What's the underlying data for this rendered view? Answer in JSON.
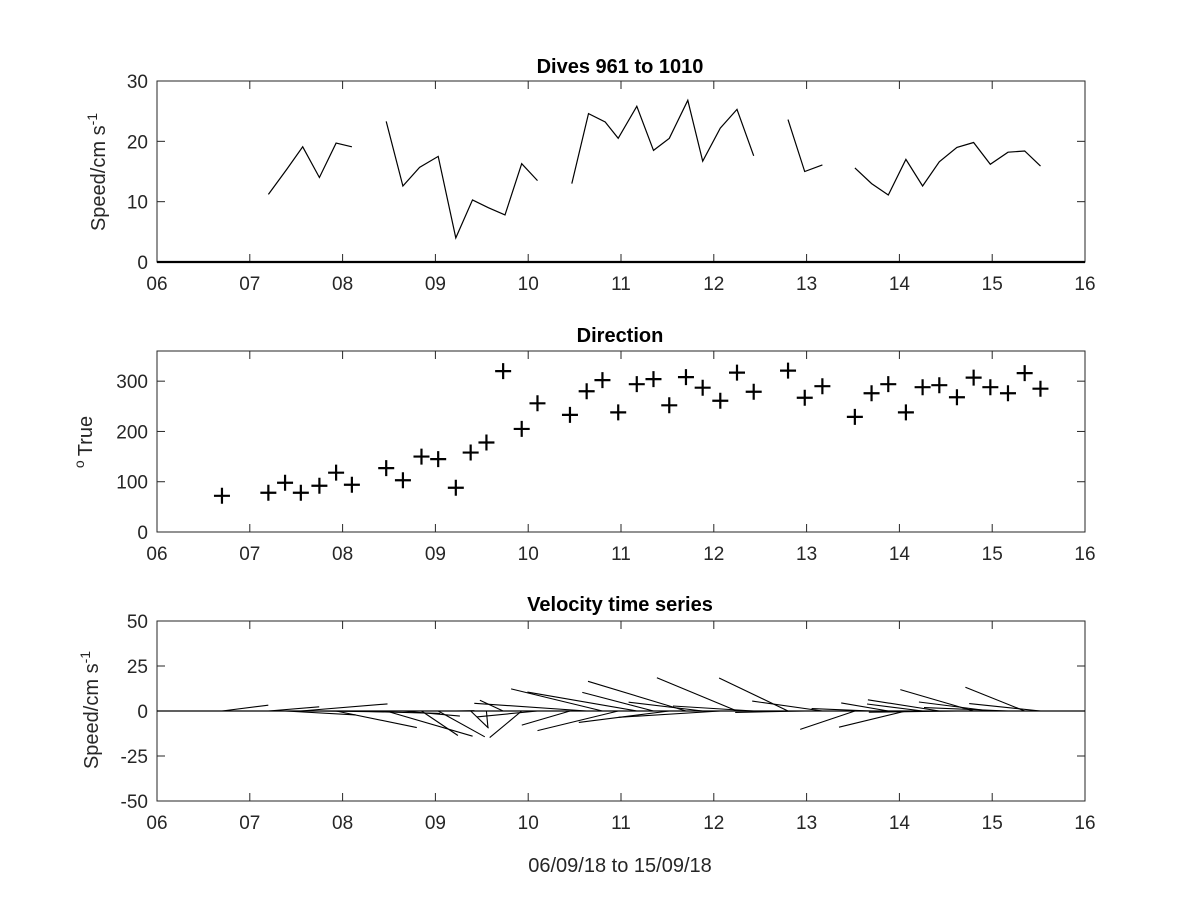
{
  "chart_data": [
    {
      "type": "line",
      "title": "Dives 961 to 1010",
      "ylabel_main": "Speed/cm s",
      "ylabel_sup": "-1",
      "xlabel": "",
      "xlim": [
        6,
        16
      ],
      "ylim": [
        0,
        30
      ],
      "xticks": [
        6,
        7,
        8,
        9,
        10,
        11,
        12,
        13,
        14,
        15,
        16
      ],
      "xtick_labels": [
        "06",
        "07",
        "08",
        "09",
        "10",
        "11",
        "12",
        "13",
        "14",
        "15",
        "16"
      ],
      "yticks": [
        0,
        10,
        20,
        30
      ],
      "ytick_labels": [
        "0",
        "10",
        "20",
        "30"
      ],
      "grid": false,
      "baseline": 0,
      "series": [
        {
          "segments": [
            [
              [
                7.2,
                11.2
              ],
              [
                7.4,
                15.4
              ],
              [
                7.57,
                19.1
              ],
              [
                7.75,
                14.0
              ],
              [
                7.93,
                19.7
              ],
              [
                8.1,
                19.1
              ]
            ],
            [
              [
                8.47,
                23.3
              ],
              [
                8.65,
                12.6
              ],
              [
                8.83,
                15.7
              ],
              [
                9.03,
                17.5
              ],
              [
                9.22,
                4.0
              ],
              [
                9.4,
                10.3
              ],
              [
                9.57,
                9.0
              ],
              [
                9.75,
                7.8
              ],
              [
                9.93,
                16.3
              ],
              [
                10.1,
                13.5
              ]
            ],
            [
              [
                10.47,
                13.0
              ],
              [
                10.65,
                24.6
              ],
              [
                10.83,
                23.2
              ],
              [
                10.97,
                20.5
              ],
              [
                11.17,
                25.8
              ],
              [
                11.35,
                18.5
              ],
              [
                11.52,
                20.5
              ],
              [
                11.72,
                26.8
              ],
              [
                11.88,
                16.7
              ],
              [
                12.07,
                22.2
              ],
              [
                12.25,
                25.3
              ],
              [
                12.43,
                17.6
              ]
            ],
            [
              [
                12.8,
                23.6
              ],
              [
                12.98,
                15.0
              ],
              [
                13.17,
                16.1
              ]
            ],
            [
              [
                13.52,
                15.6
              ],
              [
                13.7,
                13.0
              ],
              [
                13.88,
                11.1
              ],
              [
                14.07,
                17.0
              ],
              [
                14.25,
                12.6
              ],
              [
                14.43,
                16.6
              ],
              [
                14.62,
                19.0
              ],
              [
                14.8,
                19.8
              ],
              [
                14.98,
                16.2
              ],
              [
                15.17,
                18.2
              ],
              [
                15.35,
                18.4
              ],
              [
                15.52,
                15.9
              ]
            ]
          ]
        }
      ]
    },
    {
      "type": "scatter",
      "title": "Direction",
      "ylabel_main": "True",
      "ylabel_sup": "o",
      "xlabel": "",
      "xlim": [
        6,
        16
      ],
      "ylim": [
        0,
        360
      ],
      "xticks": [
        6,
        7,
        8,
        9,
        10,
        11,
        12,
        13,
        14,
        15,
        16
      ],
      "xtick_labels": [
        "06",
        "07",
        "08",
        "09",
        "10",
        "11",
        "12",
        "13",
        "14",
        "15",
        "16"
      ],
      "yticks": [
        0,
        100,
        200,
        300
      ],
      "ytick_labels": [
        "0",
        "100",
        "200",
        "300"
      ],
      "grid": false,
      "marker": "+",
      "series": [
        {
          "x": [
            6.7,
            7.2,
            7.38,
            7.55,
            7.75,
            7.93,
            8.1,
            8.47,
            8.65,
            8.85,
            9.03,
            9.22,
            9.38,
            9.55,
            9.73,
            9.93,
            10.1,
            10.45,
            10.63,
            10.8,
            10.97,
            11.17,
            11.35,
            11.52,
            11.7,
            11.88,
            12.07,
            12.25,
            12.43,
            12.8,
            12.98,
            13.17,
            13.52,
            13.7,
            13.88,
            14.07,
            14.25,
            14.43,
            14.62,
            14.8,
            14.98,
            15.17,
            15.35,
            15.52
          ],
          "y": [
            72,
            78,
            98,
            78,
            92,
            118,
            94,
            127,
            103,
            150,
            145,
            88,
            158,
            178,
            320,
            205,
            256,
            233,
            280,
            302,
            238,
            294,
            304,
            252,
            308,
            287,
            261,
            317,
            279,
            321,
            267,
            290,
            229,
            276,
            294,
            238,
            288,
            292,
            268,
            307,
            288,
            276,
            316,
            285
          ]
        }
      ]
    },
    {
      "type": "quiver",
      "title": "Velocity time series",
      "ylabel_main": "Speed/cm s",
      "ylabel_sup": "-1",
      "xlabel": "06/09/18 to 15/09/18",
      "xlim": [
        6,
        16
      ],
      "ylim": [
        -50,
        50
      ],
      "xticks": [
        6,
        7,
        8,
        9,
        10,
        11,
        12,
        13,
        14,
        15,
        16
      ],
      "xtick_labels": [
        "06",
        "07",
        "08",
        "09",
        "10",
        "11",
        "12",
        "13",
        "14",
        "15",
        "16"
      ],
      "yticks": [
        -50,
        -25,
        0,
        25,
        50
      ],
      "ytick_labels": [
        "-50",
        "-25",
        "0",
        "25",
        "50"
      ],
      "grid": false,
      "baseline": 0,
      "series": [
        {
          "x": [
            6.7,
            7.2,
            7.38,
            7.55,
            7.75,
            7.93,
            8.1,
            8.47,
            8.65,
            8.85,
            9.03,
            9.22,
            9.38,
            9.55,
            9.73,
            9.93,
            10.1,
            10.45,
            10.63,
            10.8,
            10.97,
            11.17,
            11.35,
            11.52,
            11.7,
            11.88,
            12.07,
            12.25,
            12.43,
            12.8,
            12.98,
            13.17,
            13.52,
            13.7,
            13.88,
            14.07,
            14.25,
            14.43,
            14.62,
            14.8,
            14.98,
            15.17,
            15.35,
            15.52
          ],
          "speed": [
            10.5,
            11.2,
            15.4,
            19.1,
            14.0,
            19.7,
            19.1,
            23.3,
            12.6,
            15.7,
            17.5,
            4.0,
            10.3,
            9.0,
            7.8,
            16.3,
            13.5,
            13.0,
            24.6,
            23.2,
            20.5,
            25.8,
            18.5,
            20.5,
            26.8,
            16.7,
            22.2,
            25.3,
            17.6,
            23.6,
            15.0,
            16.1,
            15.6,
            13.0,
            11.1,
            17.0,
            12.6,
            16.6,
            19.0,
            19.8,
            16.2,
            18.2,
            18.4,
            15.9
          ],
          "direction_deg": [
            72,
            78,
            98,
            78,
            92,
            118,
            94,
            127,
            103,
            150,
            145,
            88,
            158,
            178,
            320,
            205,
            256,
            233,
            280,
            302,
            238,
            294,
            304,
            252,
            308,
            287,
            261,
            317,
            279,
            321,
            267,
            290,
            229,
            276,
            294,
            238,
            288,
            292,
            268,
            307,
            288,
            276,
            316,
            285
          ]
        }
      ]
    }
  ]
}
